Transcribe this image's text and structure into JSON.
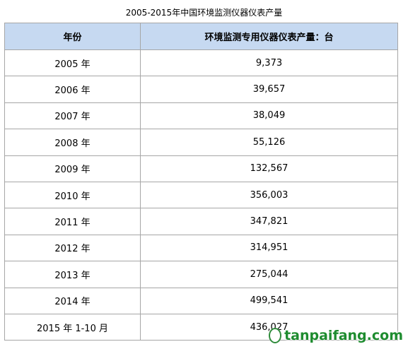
{
  "header": {
    "title": "2005-2015年中国环境监测仪器仪表产量"
  },
  "table": {
    "columns": [
      "年份",
      "环境监测专用仪器仪表产量：台"
    ],
    "rows": [
      [
        "2005 年",
        "9,373"
      ],
      [
        "2006 年",
        "39,657"
      ],
      [
        "2007 年",
        "38,049"
      ],
      [
        "2008 年",
        "55,126"
      ],
      [
        "2009 年",
        "132,567"
      ],
      [
        "2010 年",
        "356,003"
      ],
      [
        "2011 年",
        "347,821"
      ],
      [
        "2012 年",
        "314,951"
      ],
      [
        "2013 年",
        "275,044"
      ],
      [
        "2014 年",
        "499,541"
      ],
      [
        "2015 年 1-10 月",
        "436,027"
      ]
    ]
  },
  "watermark": "tanpaifang.com"
}
